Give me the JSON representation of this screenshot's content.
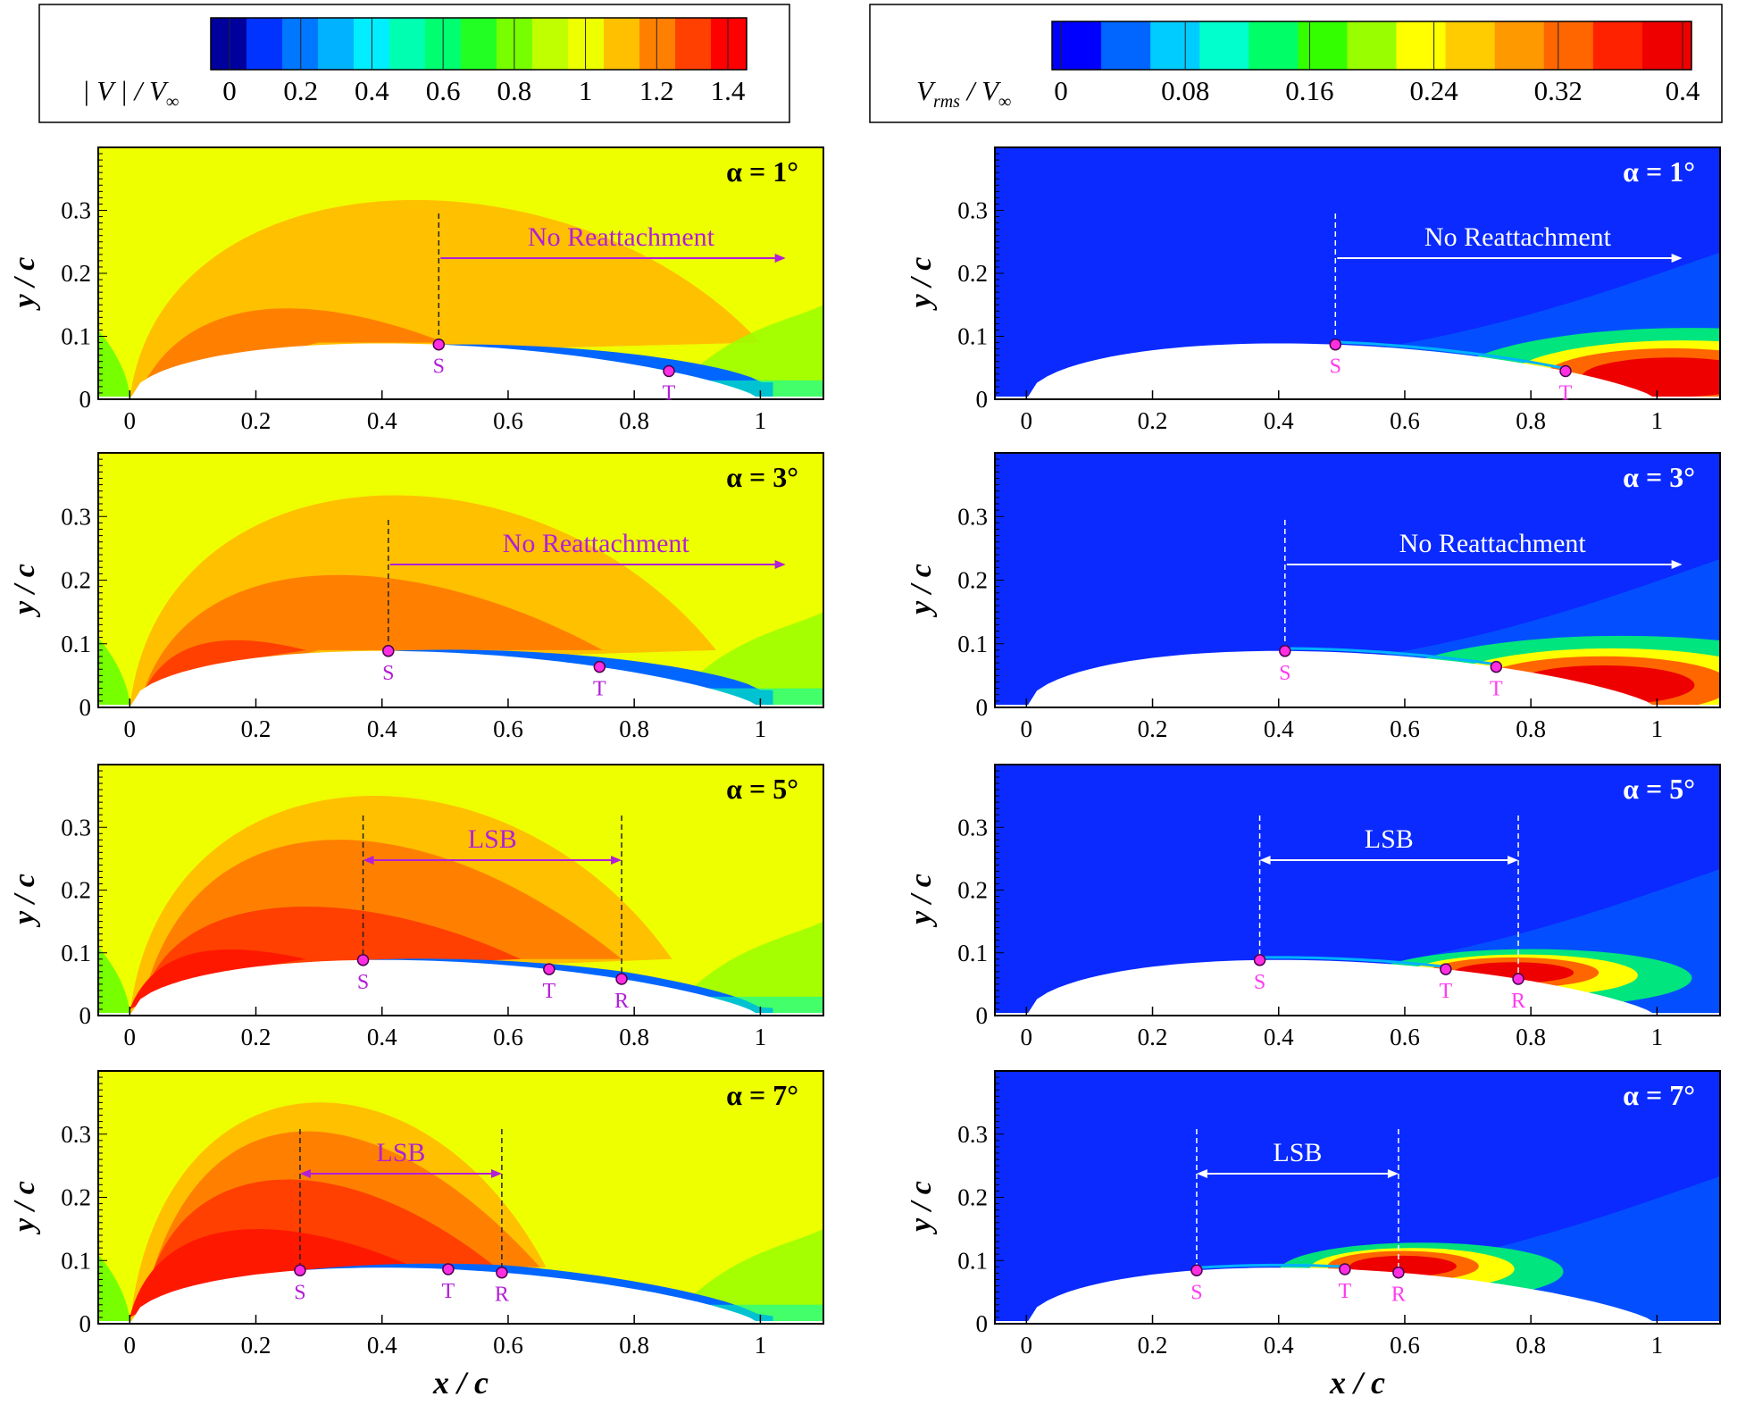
{
  "chart_data": {
    "type": "heatmap",
    "colorbars": [
      {
        "id": "velocity",
        "label_main": "| V | / V",
        "label_sub": "∞",
        "ticks": [
          "0",
          "0.2",
          "0.4",
          "0.6",
          "0.8",
          "1",
          "1.2",
          "1.4"
        ],
        "range": [
          0,
          1.5
        ],
        "colors": [
          "#00009c",
          "#0033ff",
          "#0077ff",
          "#00b2ff",
          "#00eeff",
          "#00ffb0",
          "#00ff70",
          "#22ff22",
          "#77ff00",
          "#c0ff00",
          "#eeff00",
          "#ffc000",
          "#ff8000",
          "#ff4000",
          "#ff0000"
        ]
      },
      {
        "id": "rms",
        "label_main": "V",
        "label_sub": "rms",
        "label_tail": " / V",
        "label_tail_sub": "∞",
        "ticks": [
          "0",
          "0.08",
          "0.16",
          "0.24",
          "0.32",
          "0.4"
        ],
        "range": [
          0,
          0.4
        ],
        "colors": [
          "#0000ff",
          "#0066ff",
          "#00ccff",
          "#00ffcc",
          "#00ff66",
          "#33ff00",
          "#99ff00",
          "#ffff00",
          "#ffcc00",
          "#ff9900",
          "#ff6600",
          "#ff2200",
          "#ee0000"
        ]
      }
    ],
    "axes": {
      "x_label": "x / c",
      "y_label": "y / c",
      "x_ticks": [
        "0",
        "0.2",
        "0.4",
        "0.6",
        "0.8",
        "1"
      ],
      "y_ticks": [
        "0",
        "0.1",
        "0.2",
        "0.3"
      ],
      "x_range": [
        -0.05,
        1.1
      ],
      "y_range": [
        0,
        0.4
      ]
    },
    "cases": [
      {
        "alpha_label": "α = 1°",
        "annotation": "No Reattachment",
        "arrow_type": "single",
        "points": [
          {
            "label": "S",
            "x": 0.49
          },
          {
            "label": "T",
            "x": 0.855
          }
        ],
        "arrow_start": 0.49,
        "arrow_end": 1.04
      },
      {
        "alpha_label": "α = 3°",
        "annotation": "No Reattachment",
        "arrow_type": "single",
        "points": [
          {
            "label": "S",
            "x": 0.41
          },
          {
            "label": "T",
            "x": 0.745
          }
        ],
        "arrow_start": 0.41,
        "arrow_end": 1.04
      },
      {
        "alpha_label": "α = 5°",
        "annotation": "LSB",
        "arrow_type": "double",
        "points": [
          {
            "label": "S",
            "x": 0.37
          },
          {
            "label": "T",
            "x": 0.665
          },
          {
            "label": "R",
            "x": 0.78
          }
        ],
        "arrow_start": 0.37,
        "arrow_end": 0.78
      },
      {
        "alpha_label": "α = 7°",
        "annotation": "LSB",
        "arrow_type": "double",
        "points": [
          {
            "label": "S",
            "x": 0.27
          },
          {
            "label": "T",
            "x": 0.505
          },
          {
            "label": "R",
            "x": 0.59
          }
        ],
        "arrow_start": 0.27,
        "arrow_end": 0.59
      }
    ],
    "accent_colors": {
      "annotation_left": "#b21fd6",
      "annotation_right": "#ffffff",
      "marker": "#ff2ee0"
    }
  }
}
